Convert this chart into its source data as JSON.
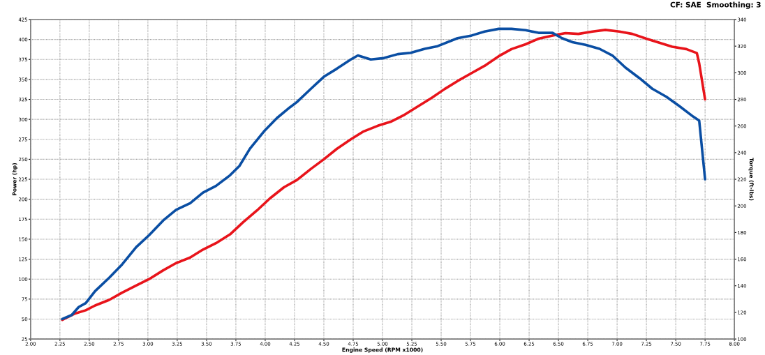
{
  "chart_data": {
    "type": "line",
    "xlabel": "Engine Speed (RPM x1000)",
    "ylabel": "Power (hp)",
    "y2label": "Torque (ft-lbs)",
    "annotations": [
      "CF: SAE  Smoothing: 3"
    ],
    "series": [
      {
        "color": "#e8141b",
        "axis": "y",
        "x": [
          2.27,
          2.38,
          2.47,
          2.55,
          2.67,
          2.78,
          2.9,
          3.01,
          3.13,
          3.24,
          3.36,
          3.47,
          3.58,
          3.7,
          3.81,
          3.93,
          4.04,
          4.16,
          4.27,
          4.39,
          4.5,
          4.61,
          4.73,
          4.84,
          4.96,
          5.07,
          5.19,
          5.3,
          5.42,
          5.53,
          5.64,
          5.76,
          5.87,
          5.99,
          6.1,
          6.22,
          6.33,
          6.45,
          6.56,
          6.67,
          6.79,
          6.9,
          7.02,
          7.13,
          7.25,
          7.36,
          7.47,
          7.59,
          7.68,
          7.7,
          7.75
        ],
        "values": [
          49,
          57,
          61,
          67,
          74,
          83,
          92,
          100,
          111,
          120,
          127,
          137,
          145,
          156,
          171,
          186,
          201,
          215,
          224,
          238,
          250,
          263,
          275,
          285,
          292,
          297,
          306,
          316,
          327,
          338,
          348,
          358,
          367,
          379,
          388,
          394,
          401,
          405,
          408,
          407,
          410,
          412,
          410,
          407,
          401,
          396,
          391,
          388,
          383,
          370,
          325
        ]
      },
      {
        "color": "#0a4ea3",
        "axis": "y2",
        "x": [
          2.27,
          2.35,
          2.41,
          2.47,
          2.55,
          2.67,
          2.78,
          2.9,
          3.01,
          3.13,
          3.24,
          3.36,
          3.47,
          3.58,
          3.7,
          3.78,
          3.87,
          3.99,
          4.1,
          4.21,
          4.27,
          4.39,
          4.5,
          4.61,
          4.73,
          4.79,
          4.9,
          5.01,
          5.13,
          5.24,
          5.36,
          5.47,
          5.64,
          5.76,
          5.87,
          5.99,
          6.1,
          6.22,
          6.33,
          6.45,
          6.53,
          6.62,
          6.73,
          6.85,
          6.96,
          7.07,
          7.19,
          7.3,
          7.42,
          7.53,
          7.65,
          7.7,
          7.75
        ],
        "values": [
          115,
          118,
          124,
          127,
          136,
          146,
          156,
          169,
          178,
          189,
          197,
          202,
          210,
          215,
          223,
          230,
          243,
          256,
          266,
          274,
          278,
          288,
          297,
          303,
          310,
          313,
          310,
          311,
          314,
          315,
          318,
          320,
          326,
          328,
          331,
          333,
          333,
          332,
          330,
          330,
          326,
          323,
          321,
          318,
          313,
          304,
          296,
          288,
          282,
          275,
          267,
          264,
          220
        ]
      }
    ],
    "xlim": [
      2,
      8
    ],
    "xticks": [
      {
        "value": 2,
        "label": "2.00"
      },
      {
        "value": 2.25,
        "label": "2.25"
      },
      {
        "value": 2.5,
        "label": "2.50"
      },
      {
        "value": 2.75,
        "label": "2.75"
      },
      {
        "value": 3,
        "label": "3.00"
      },
      {
        "value": 3.25,
        "label": "3.25"
      },
      {
        "value": 3.5,
        "label": "3.50"
      },
      {
        "value": 3.75,
        "label": "3.75"
      },
      {
        "value": 4,
        "label": "4.00"
      },
      {
        "value": 4.25,
        "label": "4.25"
      },
      {
        "value": 4.5,
        "label": "4.50"
      },
      {
        "value": 4.75,
        "label": "4.75"
      },
      {
        "value": 5,
        "label": "5.00"
      },
      {
        "value": 5.25,
        "label": "5.25"
      },
      {
        "value": 5.5,
        "label": "5.50"
      },
      {
        "value": 5.75,
        "label": "5.75"
      },
      {
        "value": 6,
        "label": "6.00"
      },
      {
        "value": 6.25,
        "label": "6.25"
      },
      {
        "value": 6.5,
        "label": "6.50"
      },
      {
        "value": 6.75,
        "label": "6.75"
      },
      {
        "value": 7,
        "label": "7.00"
      },
      {
        "value": 7.25,
        "label": "7.25"
      },
      {
        "value": 7.5,
        "label": "7.50"
      },
      {
        "value": 7.75,
        "label": "7.75"
      },
      {
        "value": 8,
        "label": "8.00"
      }
    ],
    "ylim": [
      25,
      425
    ],
    "yticks": [
      25,
      50,
      75,
      100,
      125,
      150,
      175,
      200,
      225,
      250,
      275,
      300,
      325,
      350,
      375,
      400,
      425
    ],
    "y2lim": [
      100,
      340
    ],
    "y2ticks": [
      100,
      120,
      140,
      160,
      180,
      200,
      220,
      240,
      260,
      280,
      300,
      320,
      340
    ],
    "grid": true,
    "marker": "none",
    "line_style": "solid"
  }
}
